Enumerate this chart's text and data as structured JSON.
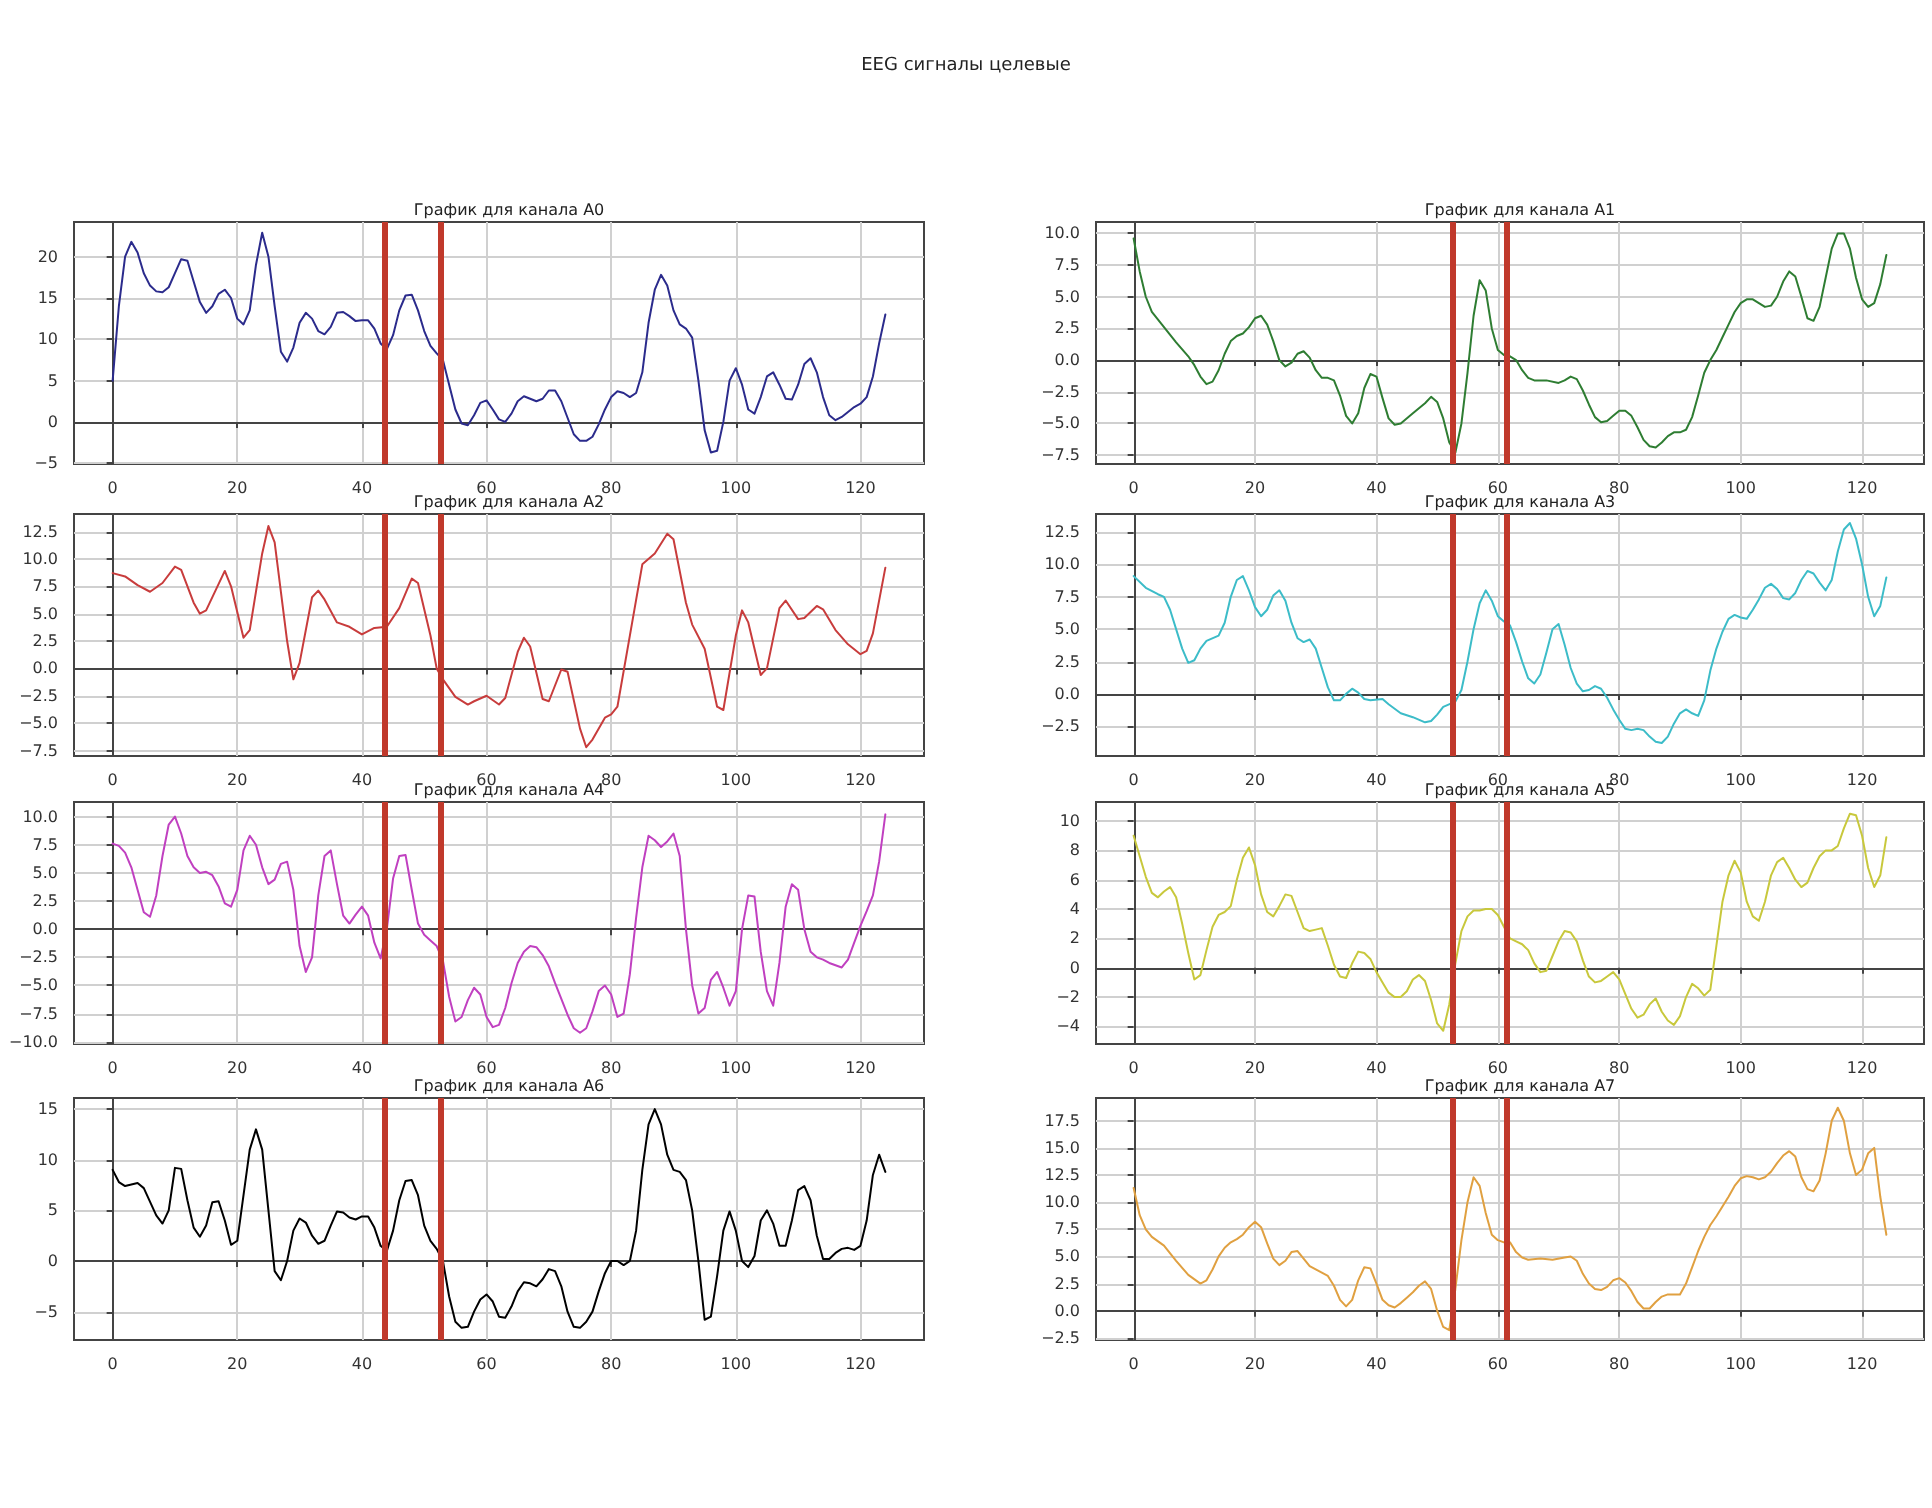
{
  "chart_data": [
    {
      "type": "other",
      "title": "EEG сигналы целевые"
    },
    {
      "type": "line",
      "title": "График для канала A0",
      "color": "#2b2b8c",
      "grid": true,
      "x": [
        0,
        1,
        2,
        3,
        4,
        5,
        6,
        7,
        8,
        9,
        10,
        11,
        12,
        13,
        14,
        15,
        16,
        17,
        18,
        19,
        20,
        21,
        22,
        23,
        24,
        25,
        26,
        27,
        28,
        29,
        30,
        31,
        32,
        33,
        34,
        35,
        36,
        37,
        38,
        39,
        40,
        41,
        42,
        43,
        44,
        45,
        46,
        47,
        48,
        49,
        50,
        51,
        52,
        53,
        54,
        55,
        56,
        57,
        58,
        59,
        60,
        61,
        62,
        63,
        64,
        65,
        66,
        67,
        68,
        69,
        70,
        71,
        72,
        73,
        74,
        75,
        76,
        77,
        78,
        79,
        80,
        81,
        82,
        83,
        84,
        85,
        86,
        87,
        88,
        89,
        90,
        91,
        92,
        93,
        94,
        95,
        96,
        97,
        98,
        99,
        100,
        101,
        102,
        103,
        104,
        105,
        106,
        107,
        108,
        109,
        110,
        111,
        112,
        113,
        114,
        115,
        116,
        117,
        118,
        119,
        120,
        121,
        122,
        123,
        124
      ],
      "values": [
        5,
        14,
        20,
        21.8,
        20.5,
        18,
        16.5,
        15.8,
        15.7,
        16.3,
        18,
        19.7,
        19.5,
        17,
        14.5,
        13.2,
        14,
        15.5,
        16,
        15,
        12.5,
        11.8,
        13.5,
        19,
        22.9,
        20,
        14,
        8.5,
        7.3,
        9,
        12,
        13.2,
        12.5,
        11,
        10.6,
        11.5,
        13.2,
        13.3,
        12.8,
        12.2,
        12.3,
        12.3,
        11.3,
        9.5,
        8.8,
        10.5,
        13.5,
        15.3,
        15.4,
        13.5,
        11,
        9.2,
        8.3,
        7.5,
        4.5,
        1.5,
        -0.2,
        -0.4,
        0.8,
        2.3,
        2.6,
        1.5,
        0.3,
        0,
        1,
        2.5,
        3.1,
        2.8,
        2.5,
        2.8,
        3.8,
        3.8,
        2.5,
        0.5,
        -1.5,
        -2.3,
        -2.3,
        -1.8,
        -0.3,
        1.5,
        3,
        3.7,
        3.5,
        3,
        3.5,
        6,
        12,
        16,
        17.8,
        16.5,
        13.5,
        11.8,
        11.3,
        10.2,
        5,
        -1,
        -3.7,
        -3.5,
        0,
        5,
        6.5,
        4.5,
        1.5,
        1,
        3,
        5.5,
        6,
        4.5,
        2.8,
        2.7,
        4.5,
        7,
        7.7,
        6,
        3,
        0.8,
        0.2,
        0.6,
        1.2,
        1.8,
        2.2,
        3,
        5.5,
        9.5,
        13
      ],
      "xlim": [
        -6.2,
        130.2
      ],
      "xticks": [
        0,
        20,
        40,
        60,
        80,
        100,
        120
      ],
      "ylim": [
        -5.1,
        24.2
      ],
      "yticks": [
        -5,
        0,
        5,
        10,
        15,
        20
      ],
      "ref_lines": [
        {
          "axis": "x",
          "value": 43.7,
          "color": "#c0392b"
        },
        {
          "axis": "x",
          "value": 52.7,
          "color": "#c0392b"
        }
      ]
    },
    {
      "type": "line",
      "title": "График для канала A1",
      "color": "#2e7d32",
      "grid": true,
      "x": [
        0,
        1,
        2,
        3,
        5,
        7,
        9,
        10,
        11,
        12,
        13,
        14,
        15,
        16,
        17,
        18,
        19,
        20,
        21,
        22,
        23,
        24,
        25,
        26,
        27,
        28,
        29,
        30,
        31,
        32,
        33,
        34,
        35,
        36,
        37,
        38,
        39,
        40,
        41,
        42,
        43,
        44,
        46,
        48,
        49,
        50,
        51,
        52,
        53,
        54,
        55,
        56,
        57,
        58,
        59,
        60,
        61,
        62,
        63,
        64,
        65,
        66,
        68,
        70,
        71,
        72,
        73,
        74,
        75,
        76,
        77,
        78,
        79,
        80,
        81,
        82,
        83,
        84,
        85,
        86,
        87,
        88,
        89,
        90,
        91,
        92,
        93,
        94,
        95,
        96,
        97,
        98,
        99,
        100,
        101,
        102,
        103,
        104,
        105,
        106,
        107,
        108,
        109,
        110,
        111,
        112,
        113,
        114,
        115,
        116,
        117,
        118,
        119,
        120,
        121,
        122,
        123,
        124
      ],
      "values": [
        9.6,
        7,
        5,
        3.8,
        2.6,
        1.4,
        0.3,
        -0.4,
        -1.3,
        -1.9,
        -1.7,
        -0.8,
        0.5,
        1.5,
        1.9,
        2.1,
        2.6,
        3.3,
        3.5,
        2.8,
        1.5,
        0,
        -0.5,
        -0.2,
        0.5,
        0.7,
        0.2,
        -0.8,
        -1.4,
        -1.4,
        -1.6,
        -2.8,
        -4.4,
        -5,
        -4.2,
        -2.2,
        -1.1,
        -1.3,
        -3,
        -4.6,
        -5.1,
        -5,
        -4.2,
        -3.4,
        -2.9,
        -3.3,
        -4.6,
        -6.5,
        -7.3,
        -5,
        -1,
        3.5,
        6.3,
        5.5,
        2.5,
        0.8,
        0.4,
        0.3,
        0,
        -0.8,
        -1.4,
        -1.6,
        -1.6,
        -1.8,
        -1.6,
        -1.3,
        -1.5,
        -2.4,
        -3.5,
        -4.5,
        -4.9,
        -4.8,
        -4.4,
        -4,
        -4,
        -4.4,
        -5.3,
        -6.3,
        -6.8,
        -6.9,
        -6.5,
        -6,
        -5.7,
        -5.7,
        -5.5,
        -4.5,
        -2.8,
        -1,
        0,
        0.8,
        1.8,
        2.8,
        3.8,
        4.5,
        4.8,
        4.8,
        4.5,
        4.2,
        4.3,
        5,
        6.2,
        7,
        6.6,
        5,
        3.3,
        3.1,
        4.2,
        6.5,
        8.8,
        10,
        10,
        8.8,
        6.5,
        4.8,
        4.2,
        4.5,
        6,
        8.3
      ],
      "xlim": [
        -6.2,
        130.2
      ],
      "xticks": [
        0,
        20,
        40,
        60,
        80,
        100,
        120
      ],
      "ylim": [
        -8.2,
        10.9
      ],
      "yticks": [
        {
          "value": -7.5,
          "label": "−7.5"
        },
        {
          "value": -5,
          "label": "−5.0"
        },
        {
          "value": -2.5,
          "label": "−2.5"
        },
        {
          "value": 0,
          "label": "0.0"
        },
        {
          "value": 2.5,
          "label": "2.5"
        },
        {
          "value": 5,
          "label": "5.0"
        },
        {
          "value": 7.5,
          "label": "7.5"
        },
        {
          "value": 10,
          "label": "10.0"
        }
      ],
      "ref_lines": [
        {
          "axis": "x",
          "value": 52.5,
          "color": "#c0392b"
        },
        {
          "axis": "x",
          "value": 61.5,
          "color": "#c0392b"
        }
      ]
    },
    {
      "type": "line",
      "title": "График для канала A2",
      "color": "#c83c3c",
      "grid": true,
      "x": [
        0,
        2,
        4,
        6,
        8,
        10,
        11,
        13,
        14,
        15,
        18,
        19,
        21,
        22,
        24,
        25,
        26,
        28,
        29,
        30,
        32,
        33,
        34,
        36,
        38,
        40,
        42,
        44,
        46,
        48,
        49,
        51,
        52,
        53,
        55,
        57,
        58,
        60,
        62,
        63,
        65,
        66,
        67,
        69,
        70,
        72,
        73,
        75,
        76,
        77,
        79,
        80,
        81,
        83,
        85,
        87,
        89,
        90,
        92,
        93,
        95,
        97,
        98,
        100,
        101,
        102,
        104,
        105,
        107,
        108,
        110,
        111,
        113,
        114,
        116,
        118,
        120,
        121,
        122,
        124
      ],
      "values": [
        8.7,
        8.4,
        7.6,
        7,
        7.8,
        9.3,
        9,
        6,
        5,
        5.3,
        8.9,
        7.5,
        2.8,
        3.5,
        10.5,
        13,
        11.5,
        2.5,
        -1,
        0.5,
        6.5,
        7.1,
        6.3,
        4.2,
        3.8,
        3.1,
        3.7,
        3.8,
        5.5,
        8.2,
        7.8,
        3,
        0,
        -1,
        -2.6,
        -3.3,
        -3,
        -2.5,
        -3.3,
        -2.7,
        1.5,
        2.8,
        2,
        -2.8,
        -3,
        -0.1,
        -0.3,
        -5.5,
        -7.2,
        -6.5,
        -4.5,
        -4.2,
        -3.5,
        3,
        9.5,
        10.5,
        12.3,
        11.8,
        6,
        4,
        1.8,
        -3.5,
        -3.8,
        3,
        5.3,
        4.2,
        -0.6,
        0,
        5.5,
        6.2,
        4.5,
        4.6,
        5.7,
        5.4,
        3.5,
        2.2,
        1.3,
        1.6,
        3.2,
        9.2
      ],
      "xlim": [
        -6.2,
        130.2
      ],
      "xticks": [
        0,
        20,
        40,
        60,
        80,
        100,
        120
      ],
      "ylim": [
        -8,
        14.1
      ],
      "yticks": [
        {
          "value": -7.5,
          "label": "−7.5"
        },
        {
          "value": -5,
          "label": "−5.0"
        },
        {
          "value": -2.5,
          "label": "−2.5"
        },
        {
          "value": 0,
          "label": "0.0"
        },
        {
          "value": 2.5,
          "label": "2.5"
        },
        {
          "value": 5,
          "label": "5.0"
        },
        {
          "value": 7.5,
          "label": "7.5"
        },
        {
          "value": 10,
          "label": "10.0"
        },
        {
          "value": 12.5,
          "label": "12.5"
        }
      ],
      "ref_lines": [
        {
          "axis": "x",
          "value": 43.7,
          "color": "#c0392b"
        },
        {
          "axis": "x",
          "value": 52.7,
          "color": "#c0392b"
        }
      ]
    },
    {
      "type": "line",
      "title": "График для канала A3",
      "color": "#3cbcc8",
      "grid": true,
      "x": [
        0,
        2,
        4,
        5,
        6,
        8,
        9,
        10,
        11,
        12,
        14,
        15,
        16,
        17,
        18,
        19,
        20,
        21,
        22,
        23,
        24,
        25,
        26,
        27,
        28,
        29,
        30,
        31,
        32,
        33,
        34,
        35,
        36,
        37,
        38,
        39,
        41,
        42,
        44,
        46,
        48,
        49,
        50,
        51,
        53,
        54,
        55,
        56,
        57,
        58,
        59,
        60,
        61,
        62,
        63,
        64,
        65,
        66,
        67,
        68,
        69,
        70,
        71,
        72,
        73,
        74,
        75,
        76,
        77,
        78,
        79,
        80,
        81,
        82,
        83,
        84,
        85,
        86,
        87,
        88,
        89,
        90,
        91,
        92,
        93,
        94,
        95,
        96,
        97,
        98,
        99,
        100,
        101,
        102,
        103,
        104,
        105,
        106,
        107,
        108,
        109,
        110,
        111,
        112,
        113,
        114,
        115,
        116,
        117,
        118,
        119,
        120,
        121,
        122,
        123,
        124
      ],
      "values": [
        9.1,
        8.2,
        7.7,
        7.5,
        6.5,
        3.5,
        2.4,
        2.6,
        3.5,
        4.1,
        4.5,
        5.5,
        7.5,
        8.8,
        9.1,
        8,
        6.7,
        6,
        6.5,
        7.6,
        8,
        7.2,
        5.5,
        4.3,
        4,
        4.2,
        3.5,
        2,
        0.5,
        -0.5,
        -0.5,
        0,
        0.4,
        0.1,
        -0.4,
        -0.5,
        -0.4,
        -0.8,
        -1.5,
        -1.8,
        -2.2,
        -2.1,
        -1.6,
        -1,
        -0.6,
        0.3,
        2.5,
        5,
        7,
        8,
        7.2,
        6,
        5.6,
        5.3,
        4,
        2.5,
        1.2,
        0.8,
        1.5,
        3.2,
        5,
        5.4,
        3.8,
        2,
        0.8,
        0.2,
        0.3,
        0.6,
        0.4,
        -0.3,
        -1.2,
        -2,
        -2.7,
        -2.8,
        -2.7,
        -2.8,
        -3.3,
        -3.7,
        -3.8,
        -3.3,
        -2.3,
        -1.5,
        -1.2,
        -1.5,
        -1.7,
        -0.5,
        1.8,
        3.5,
        4.8,
        5.8,
        6.1,
        5.9,
        5.8,
        6.5,
        7.3,
        8.2,
        8.5,
        8.1,
        7.4,
        7.3,
        7.8,
        8.8,
        9.5,
        9.3,
        8.6,
        8,
        8.8,
        11,
        12.7,
        13.2,
        12,
        10,
        7.5,
        6,
        6.8,
        9
      ],
      "xlim": [
        -6.2,
        130.2
      ],
      "xticks": [
        0,
        20,
        40,
        60,
        80,
        100,
        120
      ],
      "ylim": [
        -4.8,
        13.9
      ],
      "yticks": [
        {
          "value": -2.5,
          "label": "−2.5"
        },
        {
          "value": 0,
          "label": "0.0"
        },
        {
          "value": 2.5,
          "label": "2.5"
        },
        {
          "value": 5,
          "label": "5.0"
        },
        {
          "value": 7.5,
          "label": "7.5"
        },
        {
          "value": 10,
          "label": "10.0"
        },
        {
          "value": 12.5,
          "label": "12.5"
        }
      ],
      "ref_lines": [
        {
          "axis": "x",
          "value": 52.5,
          "color": "#c0392b"
        },
        {
          "axis": "x",
          "value": 61.5,
          "color": "#c0392b"
        }
      ]
    },
    {
      "type": "line",
      "title": "График для канала A4",
      "color": "#c040c0",
      "grid": true,
      "x": [
        0,
        1,
        2,
        3,
        4,
        5,
        6,
        7,
        8,
        9,
        10,
        11,
        12,
        13,
        14,
        15,
        16,
        17,
        18,
        19,
        20,
        21,
        22,
        23,
        24,
        25,
        26,
        27,
        28,
        29,
        30,
        31,
        32,
        33,
        34,
        35,
        36,
        37,
        38,
        39,
        40,
        41,
        42,
        43,
        44,
        45,
        46,
        47,
        48,
        49,
        50,
        51,
        52,
        53,
        54,
        55,
        56,
        57,
        58,
        59,
        60,
        61,
        62,
        63,
        64,
        65,
        66,
        67,
        68,
        69,
        70,
        71,
        72,
        73,
        74,
        75,
        76,
        77,
        78,
        79,
        80,
        81,
        82,
        83,
        84,
        85,
        86,
        87,
        88,
        89,
        90,
        91,
        92,
        93,
        94,
        95,
        96,
        97,
        98,
        99,
        100,
        101,
        102,
        103,
        104,
        105,
        106,
        107,
        108,
        109,
        110,
        111,
        112,
        113,
        114,
        115,
        116,
        117,
        118,
        119,
        120,
        121,
        122,
        123,
        124
      ],
      "values": [
        7.6,
        7.4,
        6.8,
        5.5,
        3.5,
        1.5,
        1.1,
        3,
        6.5,
        9.3,
        10,
        8.5,
        6.5,
        5.5,
        5,
        5.1,
        4.8,
        3.8,
        2.3,
        2,
        3.5,
        7,
        8.3,
        7.5,
        5.5,
        4,
        4.4,
        5.8,
        6,
        3.5,
        -1.5,
        -3.8,
        -2.5,
        3,
        6.5,
        7,
        4,
        1.2,
        0.5,
        1.3,
        2,
        1.2,
        -1.2,
        -2.6,
        0,
        4.5,
        6.5,
        6.6,
        3.5,
        0.5,
        -0.5,
        -1,
        -1.5,
        -2.8,
        -6,
        -8.2,
        -7.8,
        -6.3,
        -5.2,
        -5.8,
        -7.8,
        -8.7,
        -8.5,
        -7,
        -4.8,
        -3,
        -2,
        -1.5,
        -1.6,
        -2.3,
        -3.3,
        -4.8,
        -6.2,
        -7.6,
        -8.8,
        -9.2,
        -8.8,
        -7.3,
        -5.5,
        -5,
        -5.8,
        -7.8,
        -7.5,
        -4,
        1,
        5.5,
        8.3,
        7.9,
        7.3,
        7.8,
        8.5,
        6.5,
        0,
        -5,
        -7.5,
        -7,
        -4.5,
        -3.8,
        -5.2,
        -6.8,
        -5.5,
        0,
        3,
        2.9,
        -2,
        -5.5,
        -6.8,
        -3,
        2,
        4,
        3.5,
        0,
        -2,
        -2.5,
        -2.7,
        -3,
        -3.2,
        -3.4,
        -2.7,
        -1.2,
        0.3,
        1.6,
        3,
        6,
        10.2
      ],
      "xlim": [
        -6.2,
        130.2
      ],
      "xticks": [
        0,
        20,
        40,
        60,
        80,
        100,
        120
      ],
      "ylim": [
        -10.2,
        11.3
      ],
      "yticks": [
        {
          "value": -10,
          "label": "−10.0"
        },
        {
          "value": -7.5,
          "label": "−7.5"
        },
        {
          "value": -5,
          "label": "−5.0"
        },
        {
          "value": -2.5,
          "label": "−2.5"
        },
        {
          "value": 0,
          "label": "0.0"
        },
        {
          "value": 2.5,
          "label": "2.5"
        },
        {
          "value": 5,
          "label": "5.0"
        },
        {
          "value": 7.5,
          "label": "7.5"
        },
        {
          "value": 10,
          "label": "10.0"
        }
      ],
      "ref_lines": [
        {
          "axis": "x",
          "value": 43.7,
          "color": "#c0392b"
        },
        {
          "axis": "x",
          "value": 52.7,
          "color": "#c0392b"
        }
      ]
    },
    {
      "type": "line",
      "title": "График для канала A5",
      "color": "#c8c83c",
      "grid": true,
      "x": [
        0,
        2,
        3,
        4,
        5,
        6,
        7,
        8,
        9,
        10,
        11,
        12,
        13,
        14,
        15,
        16,
        17,
        18,
        19,
        20,
        21,
        22,
        23,
        24,
        25,
        26,
        27,
        28,
        29,
        30,
        31,
        32,
        33,
        34,
        35,
        36,
        37,
        38,
        39,
        40,
        41,
        42,
        43,
        44,
        45,
        46,
        47,
        48,
        49,
        50,
        51,
        52,
        53,
        54,
        55,
        56,
        57,
        58,
        59,
        60,
        61,
        62,
        63,
        64,
        65,
        66,
        67,
        68,
        69,
        70,
        71,
        72,
        73,
        74,
        75,
        76,
        77,
        78,
        79,
        80,
        81,
        82,
        83,
        84,
        85,
        86,
        87,
        88,
        89,
        90,
        91,
        92,
        93,
        94,
        95,
        96,
        97,
        98,
        99,
        100,
        101,
        102,
        103,
        104,
        105,
        106,
        107,
        108,
        109,
        110,
        111,
        112,
        113,
        114,
        115,
        116,
        117,
        118,
        119,
        120,
        121,
        122,
        123,
        124
      ],
      "values": [
        9,
        6.2,
        5.1,
        4.8,
        5.2,
        5.5,
        4.8,
        3,
        1,
        -0.8,
        -0.5,
        1.2,
        2.8,
        3.6,
        3.8,
        4.2,
        6,
        7.5,
        8.2,
        7,
        5,
        3.8,
        3.5,
        4.2,
        5,
        4.9,
        3.8,
        2.7,
        2.5,
        2.6,
        2.7,
        1.5,
        0.2,
        -0.6,
        -0.7,
        0.3,
        1.1,
        1,
        0.6,
        -0.3,
        -1,
        -1.7,
        -2,
        -2,
        -1.6,
        -0.8,
        -0.5,
        -0.9,
        -2.2,
        -3.8,
        -4.3,
        -2.5,
        0.3,
        2.5,
        3.5,
        3.9,
        3.9,
        4,
        4,
        3.6,
        2.8,
        2,
        1.8,
        1.6,
        1.2,
        0.3,
        -0.3,
        -0.2,
        0.8,
        1.8,
        2.5,
        2.4,
        1.8,
        0.5,
        -0.6,
        -1,
        -0.9,
        -0.6,
        -0.3,
        -0.8,
        -1.8,
        -2.8,
        -3.4,
        -3.2,
        -2.5,
        -2.1,
        -3,
        -3.6,
        -3.9,
        -3.3,
        -2,
        -1.1,
        -1.4,
        -1.9,
        -1.5,
        1.5,
        4.5,
        6.3,
        7.3,
        6.5,
        4.5,
        3.5,
        3.2,
        4.5,
        6.3,
        7.2,
        7.5,
        6.8,
        6,
        5.5,
        5.8,
        6.8,
        7.6,
        8,
        8,
        8.3,
        9.5,
        10.5,
        10.4,
        9,
        6.8,
        5.5,
        6.3,
        8.9
      ],
      "xlim": [
        -6.2,
        130.2
      ],
      "xticks": [
        0,
        20,
        40,
        60,
        80,
        100,
        120
      ],
      "ylim": [
        -5.2,
        11.3
      ],
      "yticks": [
        -4,
        -2,
        0,
        2,
        4,
        6,
        8,
        10
      ],
      "ref_lines": [
        {
          "axis": "x",
          "value": 52.5,
          "color": "#c0392b"
        },
        {
          "axis": "x",
          "value": 61.5,
          "color": "#c0392b"
        }
      ]
    },
    {
      "type": "line",
      "title": "График для канала A6",
      "color": "#000000",
      "grid": true,
      "x": [
        0,
        1,
        2,
        4,
        5,
        7,
        8,
        9,
        10,
        11,
        12,
        13,
        14,
        15,
        16,
        17,
        18,
        19,
        20,
        22,
        23,
        24,
        25,
        26,
        27,
        28,
        29,
        30,
        31,
        32,
        33,
        34,
        35,
        36,
        37,
        38,
        39,
        40,
        41,
        42,
        43,
        44,
        45,
        46,
        47,
        48,
        49,
        50,
        51,
        52,
        53,
        54,
        55,
        56,
        57,
        58,
        59,
        60,
        61,
        62,
        63,
        64,
        65,
        66,
        67,
        68,
        69,
        70,
        71,
        72,
        73,
        74,
        75,
        76,
        77,
        78,
        79,
        80,
        81,
        82,
        83,
        84,
        85,
        86,
        87,
        88,
        89,
        90,
        91,
        92,
        93,
        94,
        95,
        96,
        97,
        98,
        99,
        100,
        101,
        102,
        103,
        104,
        105,
        106,
        107,
        108,
        109,
        110,
        111,
        112,
        113,
        114,
        115,
        116,
        117,
        118,
        119,
        120,
        121,
        122,
        123,
        124
      ],
      "values": [
        9,
        7.8,
        7.4,
        7.7,
        7.2,
        4.5,
        3.7,
        5,
        9.2,
        9.1,
        6,
        3.3,
        2.4,
        3.5,
        5.8,
        5.9,
        4,
        1.6,
        2,
        11,
        13,
        11,
        5,
        -1,
        -1.9,
        0,
        3,
        4.2,
        3.8,
        2.5,
        1.7,
        2,
        3.5,
        4.9,
        4.8,
        4.3,
        4.1,
        4.4,
        4.4,
        3.3,
        1.5,
        1,
        3,
        6,
        7.9,
        8,
        6.5,
        3.5,
        2,
        1.2,
        0,
        -3.5,
        -6,
        -6.6,
        -6.5,
        -5,
        -3.8,
        -3.3,
        -4,
        -5.5,
        -5.6,
        -4.5,
        -3,
        -2.1,
        -2.2,
        -2.5,
        -1.8,
        -0.8,
        -1,
        -2.5,
        -5,
        -6.5,
        -6.6,
        -6,
        -5,
        -3,
        -1.2,
        0,
        0,
        -0.4,
        0,
        3,
        9,
        13.5,
        15,
        13.5,
        10.5,
        9,
        8.8,
        8,
        5,
        0,
        -5.8,
        -5.5,
        -1.5,
        3,
        4.9,
        3,
        0,
        -0.6,
        0.5,
        4,
        5,
        3.7,
        1.5,
        1.5,
        4,
        7,
        7.4,
        6,
        2.5,
        0.2,
        0.2,
        0.8,
        1.2,
        1.3,
        1.1,
        1.5,
        4,
        8.5,
        10.5,
        8.8
      ],
      "xlim": [
        -6.2,
        130.2
      ],
      "xticks": [
        0,
        20,
        40,
        60,
        80,
        100,
        120
      ],
      "ylim": [
        -7.8,
        16.1
      ],
      "yticks": [
        -5,
        0,
        5,
        10,
        15
      ],
      "ref_lines": [
        {
          "axis": "x",
          "value": 43.7,
          "color": "#c0392b"
        },
        {
          "axis": "x",
          "value": 52.7,
          "color": "#c0392b"
        }
      ]
    },
    {
      "type": "line",
      "title": "График для канала A7",
      "color": "#e0a040",
      "grid": true,
      "x": [
        0,
        1,
        2,
        3,
        5,
        7,
        9,
        11,
        12,
        13,
        14,
        15,
        16,
        17,
        18,
        19,
        20,
        21,
        22,
        23,
        24,
        25,
        26,
        27,
        28,
        29,
        30,
        31,
        32,
        33,
        34,
        35,
        36,
        37,
        38,
        39,
        40,
        41,
        42,
        43,
        44,
        45,
        46,
        47,
        48,
        49,
        50,
        51,
        52,
        53,
        54,
        55,
        56,
        57,
        58,
        59,
        60,
        61,
        62,
        63,
        64,
        65,
        67,
        69,
        71,
        72,
        73,
        74,
        75,
        76,
        77,
        78,
        79,
        80,
        81,
        82,
        83,
        84,
        85,
        86,
        87,
        88,
        89,
        90,
        91,
        92,
        93,
        94,
        95,
        96,
        97,
        98,
        99,
        100,
        101,
        102,
        103,
        104,
        105,
        106,
        107,
        108,
        109,
        110,
        111,
        112,
        113,
        114,
        115,
        116,
        117,
        118,
        119,
        120,
        121,
        122,
        123,
        124
      ],
      "values": [
        11.3,
        8.8,
        7.5,
        6.8,
        6,
        4.6,
        3.3,
        2.5,
        2.8,
        3.8,
        5,
        5.8,
        6.3,
        6.6,
        7,
        7.7,
        8.2,
        7.7,
        6.2,
        4.8,
        4.2,
        4.6,
        5.4,
        5.5,
        4.8,
        4.1,
        3.8,
        3.5,
        3.2,
        2.3,
        1,
        0.4,
        1,
        2.8,
        4,
        3.9,
        2.5,
        1,
        0.5,
        0.3,
        0.7,
        1.2,
        1.7,
        2.3,
        2.7,
        2,
        0,
        -1.5,
        -1.8,
        2,
        6.5,
        10,
        12.3,
        11.5,
        9,
        7,
        6.5,
        6.3,
        6.3,
        5.4,
        4.9,
        4.7,
        4.8,
        4.7,
        4.9,
        5,
        4.6,
        3.4,
        2.5,
        2,
        1.9,
        2.2,
        2.8,
        3,
        2.6,
        1.8,
        0.8,
        0.2,
        0.2,
        0.8,
        1.3,
        1.5,
        1.5,
        1.5,
        2.5,
        4,
        5.5,
        6.8,
        7.9,
        8.7,
        9.6,
        10.5,
        11.5,
        12.2,
        12.4,
        12.3,
        12.1,
        12.3,
        12.8,
        13.6,
        14.3,
        14.7,
        14.2,
        12.3,
        11.2,
        11,
        12,
        14.5,
        17.5,
        18.7,
        17.5,
        14.5,
        12.5,
        13,
        14.5,
        15,
        10.5,
        7
      ],
      "xlim": [
        -6.2,
        130.2
      ],
      "xticks": [
        0,
        20,
        40,
        60,
        80,
        100,
        120
      ],
      "ylim": [
        -2.7,
        19.6
      ],
      "yticks": [
        {
          "value": -2.5,
          "label": "−2.5"
        },
        {
          "value": 0,
          "label": "0.0"
        },
        {
          "value": 2.5,
          "label": "2.5"
        },
        {
          "value": 5,
          "label": "5.0"
        },
        {
          "value": 7.5,
          "label": "7.5"
        },
        {
          "value": 10,
          "label": "10.0"
        },
        {
          "value": 12.5,
          "label": "12.5"
        },
        {
          "value": 15,
          "label": "15.0"
        },
        {
          "value": 17.5,
          "label": "17.5"
        }
      ],
      "ref_lines": [
        {
          "axis": "x",
          "value": 52.5,
          "color": "#c0392b"
        },
        {
          "axis": "x",
          "value": 61.5,
          "color": "#c0392b"
        }
      ]
    }
  ]
}
